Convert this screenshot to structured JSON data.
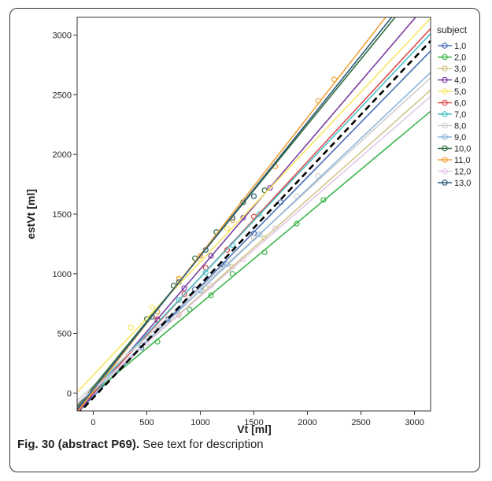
{
  "caption": {
    "label": "Fig. 30 (abstract P69).",
    "text": "See text for description"
  },
  "chart_data": {
    "type": "scatter",
    "title": "",
    "xlabel": "Vt [ml]",
    "ylabel": "estVt [ml]",
    "xlim": [
      -150,
      3150
    ],
    "ylim": [
      -150,
      3150
    ],
    "xticks": [
      0,
      500,
      1000,
      1500,
      2000,
      2500,
      3000
    ],
    "yticks": [
      0,
      500,
      1000,
      1500,
      2000,
      2500,
      3000
    ],
    "grid": false,
    "legend": {
      "title": "subject",
      "placement": "right"
    },
    "series": [
      {
        "name": "1,0",
        "color": "#4a6fb5",
        "fit": {
          "slope": 0.92,
          "intercept": -30
        },
        "points": [
          [
            450,
            380
          ],
          [
            700,
            620
          ],
          [
            950,
            870
          ],
          [
            1200,
            1080
          ],
          [
            1500,
            1340
          ],
          [
            1750,
            1600
          ]
        ]
      },
      {
        "name": "2,0",
        "color": "#3cb44b",
        "fit": {
          "slope": 0.75,
          "intercept": 0
        },
        "points": [
          [
            600,
            430
          ],
          [
            900,
            700
          ],
          [
            1100,
            820
          ],
          [
            1300,
            1000
          ],
          [
            1600,
            1180
          ],
          [
            1900,
            1420
          ],
          [
            2150,
            1620
          ]
        ]
      },
      {
        "name": "3,0",
        "color": "#d2c58a",
        "fit": {
          "slope": 0.8,
          "intercept": 20
        },
        "points": [
          [
            500,
            420
          ],
          [
            800,
            660
          ],
          [
            1050,
            880
          ],
          [
            1300,
            1060
          ],
          [
            1600,
            1300
          ]
        ]
      },
      {
        "name": "4,0",
        "color": "#7b3fa0",
        "fit": {
          "slope": 1.05,
          "intercept": -10
        },
        "points": [
          [
            600,
            610
          ],
          [
            850,
            880
          ],
          [
            1100,
            1150
          ],
          [
            1400,
            1470
          ],
          [
            1650,
            1720
          ]
        ]
      },
      {
        "name": "5,0",
        "color": "#f5e663",
        "fit": {
          "slope": 0.95,
          "intercept": 150
        },
        "points": [
          [
            350,
            550
          ],
          [
            550,
            720
          ],
          [
            800,
            950
          ],
          [
            1000,
            1120
          ],
          [
            1250,
            1380
          ]
        ]
      },
      {
        "name": "6,0",
        "color": "#e04a4a",
        "fit": {
          "slope": 0.97,
          "intercept": 0
        },
        "points": [
          [
            600,
            620
          ],
          [
            850,
            830
          ],
          [
            1050,
            1050
          ],
          [
            1250,
            1200
          ],
          [
            1500,
            1480
          ]
        ]
      },
      {
        "name": "7,0",
        "color": "#49c1c9",
        "fit": {
          "slope": 0.95,
          "intercept": 20
        },
        "points": [
          [
            500,
            470
          ],
          [
            800,
            780
          ],
          [
            1050,
            1010
          ],
          [
            1300,
            1240
          ],
          [
            1550,
            1500
          ]
        ]
      },
      {
        "name": "8,0",
        "color": "#cfcfcf",
        "fit": {
          "slope": 0.82,
          "intercept": 60
        },
        "points": [
          [
            600,
            560
          ],
          [
            900,
            800
          ],
          [
            1200,
            1050
          ],
          [
            1500,
            1300
          ],
          [
            1900,
            1650
          ],
          [
            2100,
            1820
          ]
        ]
      },
      {
        "name": "9,0",
        "color": "#8fb3d9",
        "fit": {
          "slope": 0.85,
          "intercept": 10
        },
        "points": [
          [
            450,
            400
          ],
          [
            700,
            610
          ],
          [
            1000,
            860
          ],
          [
            1250,
            1080
          ],
          [
            1550,
            1330
          ]
        ]
      },
      {
        "name": "10,0",
        "color": "#2f6b3a",
        "fit": {
          "slope": 1.1,
          "intercept": 50
        },
        "points": [
          [
            500,
            620
          ],
          [
            750,
            900
          ],
          [
            950,
            1130
          ],
          [
            1150,
            1350
          ],
          [
            1400,
            1600
          ],
          [
            1600,
            1700
          ]
        ]
      },
      {
        "name": "11,0",
        "color": "#f0a23a",
        "fit": {
          "slope": 1.15,
          "intercept": 10
        },
        "points": [
          [
            600,
            680
          ],
          [
            800,
            960
          ],
          [
            1000,
            1150
          ],
          [
            1300,
            1450
          ],
          [
            1700,
            1900
          ],
          [
            2100,
            2450
          ],
          [
            2250,
            2630
          ]
        ]
      },
      {
        "name": "12,0",
        "color": "#e2c8e6",
        "fit": {
          "slope": 0.78,
          "intercept": 30
        },
        "points": [
          [
            500,
            420
          ],
          [
            800,
            650
          ],
          [
            1100,
            900
          ],
          [
            1400,
            1120
          ],
          [
            1700,
            1380
          ]
        ]
      },
      {
        "name": "13,0",
        "color": "#2a5a78",
        "fit": {
          "slope": 1.12,
          "intercept": 30
        },
        "points": [
          [
            550,
            640
          ],
          [
            800,
            930
          ],
          [
            1050,
            1200
          ],
          [
            1300,
            1470
          ],
          [
            1500,
            1650
          ]
        ]
      }
    ],
    "overall_fit": {
      "slope": 0.95,
      "intercept": -40,
      "style": "dashed",
      "color": "#000000"
    }
  }
}
